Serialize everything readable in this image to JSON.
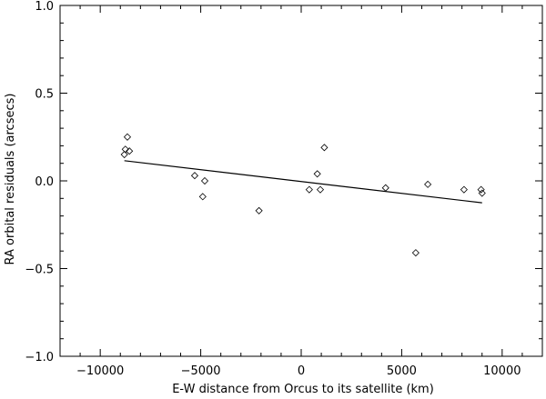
{
  "chart_data": {
    "type": "scatter",
    "xlabel": "E-W distance from Orcus to its satellite (km)",
    "ylabel": "RA orbital residuals (arcsecs)",
    "xlim": [
      -12000,
      12000
    ],
    "ylim": [
      -1.0,
      1.0
    ],
    "x_ticks": [
      -10000,
      -5000,
      0,
      5000,
      10000
    ],
    "x_tick_labels": [
      "−10000",
      "−5000",
      "0",
      "5000",
      "10000"
    ],
    "y_ticks": [
      -1.0,
      -0.5,
      0.0,
      0.5,
      1.0
    ],
    "y_tick_labels": [
      "−1.0",
      "−0.5",
      "0.0",
      "0.5",
      "1.0"
    ],
    "grid": false,
    "marker": "diamond",
    "points": [
      {
        "x": -8800,
        "y": 0.15
      },
      {
        "x": -8750,
        "y": 0.18
      },
      {
        "x": -8650,
        "y": 0.25
      },
      {
        "x": -8550,
        "y": 0.17
      },
      {
        "x": -5300,
        "y": 0.03
      },
      {
        "x": -4800,
        "y": 0.0
      },
      {
        "x": -4900,
        "y": -0.09
      },
      {
        "x": -2100,
        "y": -0.17
      },
      {
        "x": 400,
        "y": -0.05
      },
      {
        "x": 800,
        "y": 0.04
      },
      {
        "x": 950,
        "y": -0.05
      },
      {
        "x": 1150,
        "y": 0.19
      },
      {
        "x": 4200,
        "y": -0.04
      },
      {
        "x": 5700,
        "y": -0.41
      },
      {
        "x": 6300,
        "y": -0.02
      },
      {
        "x": 8100,
        "y": -0.05
      },
      {
        "x": 8950,
        "y": -0.05
      },
      {
        "x": 9000,
        "y": -0.07
      }
    ],
    "fit_line": {
      "x": [
        -8800,
        9000
      ],
      "y": [
        0.115,
        -0.125
      ]
    }
  }
}
